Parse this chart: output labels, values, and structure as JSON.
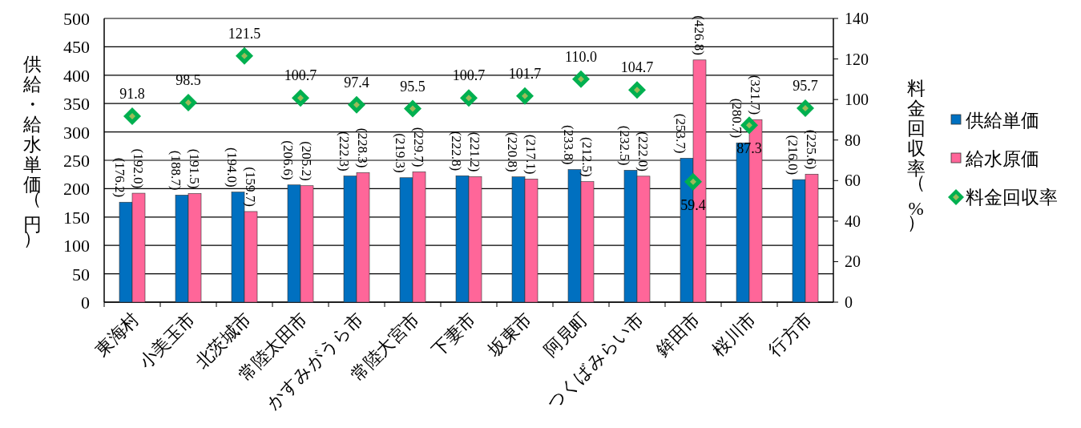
{
  "chart_data": {
    "type": "bar",
    "categories": [
      "東海村",
      "小美玉市",
      "北茨城市",
      "常陸太田市",
      "かすみがうら市",
      "常陸大宮市",
      "下妻市",
      "坂東市",
      "阿見町",
      "つくばみらい市",
      "鉾田市",
      "桜川市",
      "行方市"
    ],
    "series": [
      {
        "name": "供給単価",
        "color": "#0070c0",
        "values": [
          176.2,
          188.7,
          194.0,
          206.6,
          222.3,
          219.3,
          222.8,
          220.8,
          233.8,
          232.5,
          253.7,
          280.7,
          216.0
        ],
        "value_labels": [
          "(176.2)",
          "(188.7)",
          "(194.0)",
          "(206.6)",
          "(222.3)",
          "(219.3)",
          "(222.8)",
          "(220.8)",
          "(233.8)",
          "(232.5)",
          "(253.7)",
          "(280.7)",
          "(216.0)"
        ]
      },
      {
        "name": "給水原価",
        "color": "#ff6699",
        "values": [
          192.0,
          191.5,
          159.7,
          205.2,
          228.3,
          229.7,
          221.2,
          217.1,
          212.5,
          222.0,
          426.8,
          321.7,
          225.6
        ],
        "value_labels": [
          "(192.0)",
          "(191.5)",
          "(159.7)",
          "(205.2)",
          "(228.3)",
          "(229.7)",
          "(221.2)",
          "(217.1)",
          "(212.5)",
          "(222.0)",
          "(426.8)",
          "(321.7)",
          "(225.6)"
        ]
      },
      {
        "name": "料金回収率",
        "type": "scatter",
        "axis": "y2",
        "marker": "diamond",
        "color": "#00b050",
        "values": [
          91.8,
          98.5,
          121.5,
          100.7,
          97.4,
          95.5,
          100.7,
          101.7,
          110.0,
          104.7,
          59.4,
          87.3,
          95.7
        ],
        "value_labels": [
          "91.8",
          "98.5",
          "121.5",
          "100.7",
          "97.4",
          "95.5",
          "100.7",
          "101.7",
          "110.0",
          "104.7",
          "59.4",
          "87.3",
          "95.7"
        ]
      }
    ],
    "ylabel": "供給・給水単価（円）",
    "y2label": "料金回収率（%）",
    "ylim": [
      0,
      500
    ],
    "yticks": [
      0,
      50,
      100,
      150,
      200,
      250,
      300,
      350,
      400,
      450,
      500
    ],
    "y2lim": [
      0,
      140
    ],
    "y2ticks": [
      0,
      20,
      40,
      60,
      80,
      100,
      120,
      140
    ],
    "grid": "y",
    "legend": "right"
  }
}
